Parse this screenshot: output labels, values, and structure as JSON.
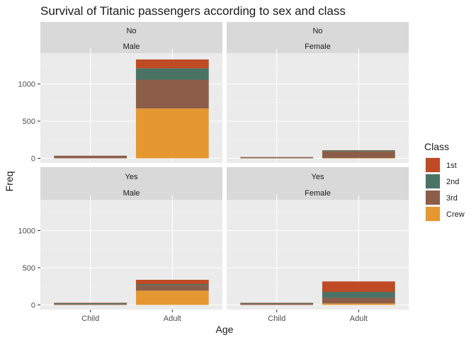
{
  "chart_data": {
    "type": "bar",
    "stacked": true,
    "faceted": true,
    "title": "Survival of Titanic passengers according to sex and class",
    "xlabel": "Age",
    "ylabel": "Freq",
    "categories": [
      "Child",
      "Adult"
    ],
    "ylim": [
      0,
      1400
    ],
    "yticks": [
      0,
      500,
      1000
    ],
    "grid": true,
    "legend": {
      "title": "Class",
      "placement": "right",
      "entries": [
        {
          "label": "1st",
          "color": "#BF4A23"
        },
        {
          "label": "2nd",
          "color": "#4A7366"
        },
        {
          "label": "3rd",
          "color": "#8C5E49"
        },
        {
          "label": "Crew",
          "color": "#E69830"
        }
      ]
    },
    "panels": [
      {
        "survived": "No",
        "sex": "Male",
        "series": [
          {
            "name": "Crew",
            "values": [
              0,
              670
            ]
          },
          {
            "name": "3rd",
            "values": [
              35,
              387
            ]
          },
          {
            "name": "2nd",
            "values": [
              0,
              154
            ]
          },
          {
            "name": "1st",
            "values": [
              0,
              118
            ]
          }
        ]
      },
      {
        "survived": "No",
        "sex": "Female",
        "series": [
          {
            "name": "Crew",
            "values": [
              0,
              3
            ]
          },
          {
            "name": "3rd",
            "values": [
              17,
              89
            ]
          },
          {
            "name": "2nd",
            "values": [
              0,
              13
            ]
          },
          {
            "name": "1st",
            "values": [
              0,
              4
            ]
          }
        ]
      },
      {
        "survived": "Yes",
        "sex": "Male",
        "series": [
          {
            "name": "Crew",
            "values": [
              0,
              192
            ]
          },
          {
            "name": "3rd",
            "values": [
              13,
              75
            ]
          },
          {
            "name": "2nd",
            "values": [
              11,
              14
            ]
          },
          {
            "name": "1st",
            "values": [
              5,
              57
            ]
          }
        ]
      },
      {
        "survived": "Yes",
        "sex": "Female",
        "series": [
          {
            "name": "Crew",
            "values": [
              0,
              20
            ]
          },
          {
            "name": "3rd",
            "values": [
              14,
              76
            ]
          },
          {
            "name": "2nd",
            "values": [
              13,
              80
            ]
          },
          {
            "name": "1st",
            "values": [
              1,
              140
            ]
          }
        ]
      }
    ]
  }
}
